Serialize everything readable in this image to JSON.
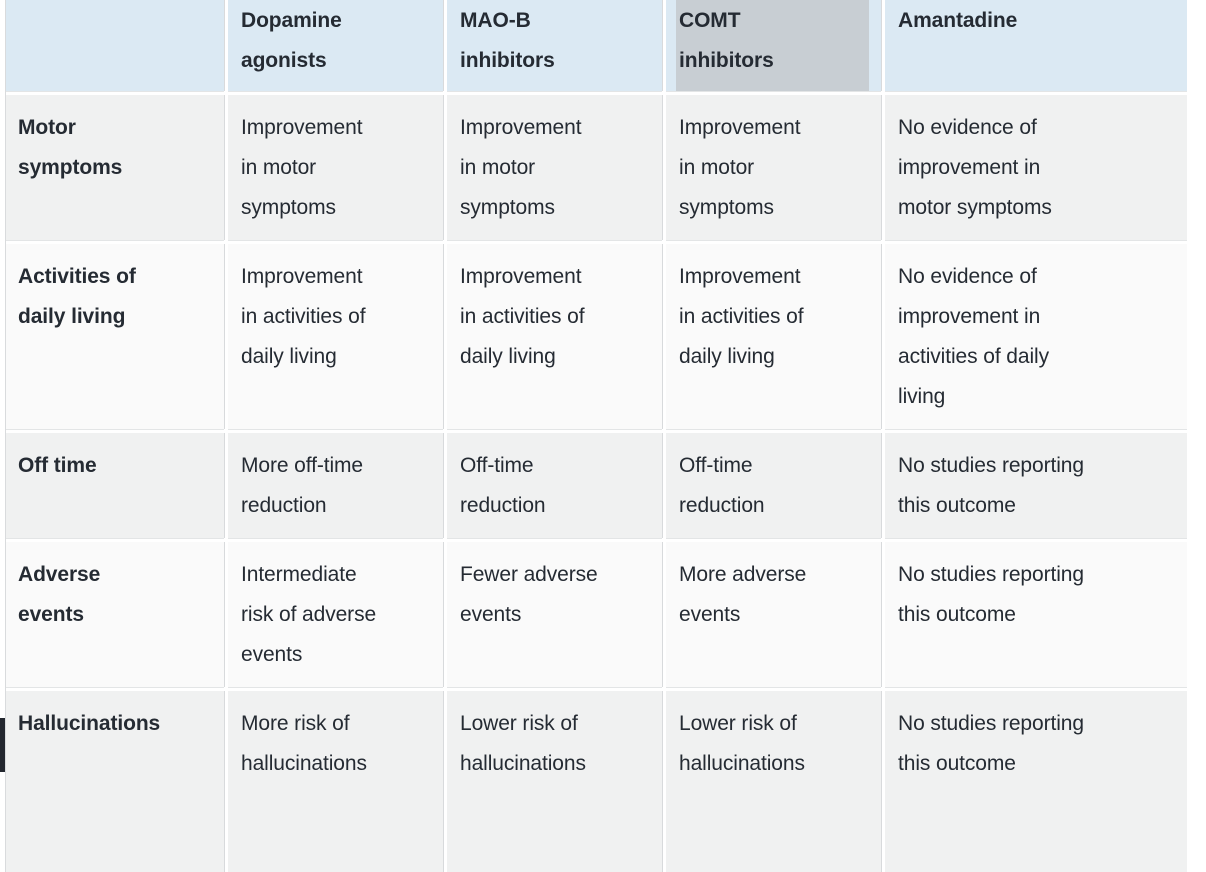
{
  "table": {
    "corner": "",
    "columns": [
      {
        "label": "Dopamine\nagonists"
      },
      {
        "label": "MAO-B\ninhibitors"
      },
      {
        "label": "COMT\ninhibitors",
        "highlighted": true
      },
      {
        "label": "Amantadine"
      }
    ],
    "rows": [
      {
        "label": "Motor\nsymptoms",
        "cells": [
          "Improvement\nin motor\nsymptoms",
          "Improvement\nin motor\nsymptoms",
          "Improvement\nin motor\nsymptoms",
          "No evidence of\nimprovement in\nmotor symptoms"
        ]
      },
      {
        "label": "Activities of\ndaily living",
        "cells": [
          "Improvement\nin activities of\ndaily living",
          "Improvement\nin activities of\ndaily living",
          "Improvement\nin activities of\ndaily living",
          "No evidence of\nimprovement in\nactivities of daily\nliving"
        ]
      },
      {
        "label": "Off time",
        "cells": [
          "More off-time\nreduction",
          "Off-time\nreduction",
          "Off-time\nreduction",
          "No studies reporting\nthis outcome"
        ]
      },
      {
        "label": "Adverse\nevents",
        "cells": [
          "Intermediate\nrisk of adverse\nevents",
          "Fewer adverse\nevents",
          "More adverse\nevents",
          "No studies reporting\nthis outcome"
        ]
      },
      {
        "label": "Hallucinations",
        "cells": [
          "More risk of\nhallucinations",
          "Lower risk of\nhallucinations",
          "Lower risk of\nhallucinations",
          "No studies reporting\nthis outcome"
        ]
      }
    ]
  },
  "colors": {
    "header_bg": "#dbe9f3",
    "column_highlight_bg": "#c8ced3",
    "row_odd_bg": "#f0f1f1",
    "row_even_bg": "#fafafa",
    "text": "#252b33",
    "divider": "#d8dadc",
    "scrollbar_fragment": "#23272f"
  }
}
